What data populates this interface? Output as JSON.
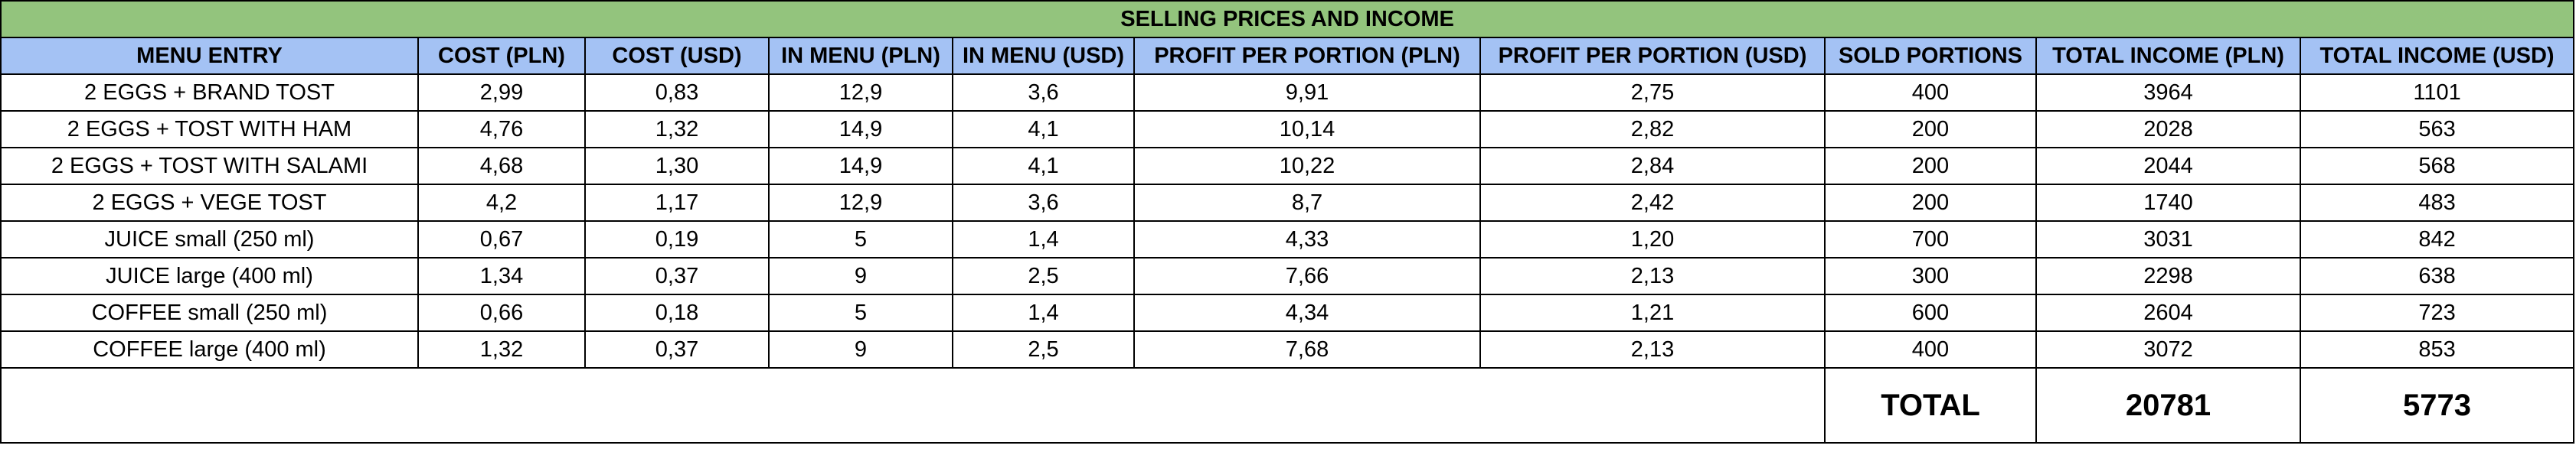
{
  "colors": {
    "title_bg": "#93c47d",
    "header_bg": "#a4c2f4",
    "border": "#000000",
    "cell_bg": "#ffffff"
  },
  "title": "SELLING PRICES AND INCOME",
  "columns": [
    "MENU ENTRY",
    "COST (PLN)",
    "COST (USD)",
    "IN MENU (PLN)",
    "IN MENU (USD)",
    "PROFIT PER PORTION (PLN)",
    "PROFIT PER PORTION (USD)",
    "SOLD PORTIONS",
    "TOTAL INCOME (PLN)",
    "TOTAL INCOME (USD)"
  ],
  "rows": [
    [
      "2 EGGS + BRAND TOST",
      "2,99",
      "0,83",
      "12,9",
      "3,6",
      "9,91",
      "2,75",
      "400",
      "3964",
      "1101"
    ],
    [
      "2 EGGS + TOST WITH HAM",
      "4,76",
      "1,32",
      "14,9",
      "4,1",
      "10,14",
      "2,82",
      "200",
      "2028",
      "563"
    ],
    [
      "2 EGGS + TOST WITH SALAMI",
      "4,68",
      "1,30",
      "14,9",
      "4,1",
      "10,22",
      "2,84",
      "200",
      "2044",
      "568"
    ],
    [
      "2 EGGS + VEGE TOST",
      "4,2",
      "1,17",
      "12,9",
      "3,6",
      "8,7",
      "2,42",
      "200",
      "1740",
      "483"
    ],
    [
      "JUICE small (250 ml)",
      "0,67",
      "0,19",
      "5",
      "1,4",
      "4,33",
      "1,20",
      "700",
      "3031",
      "842"
    ],
    [
      "JUICE large  (400 ml)",
      "1,34",
      "0,37",
      "9",
      "2,5",
      "7,66",
      "2,13",
      "300",
      "2298",
      "638"
    ],
    [
      "COFFEE small (250 ml)",
      "0,66",
      "0,18",
      "5",
      "1,4",
      "4,34",
      "1,21",
      "600",
      "2604",
      "723"
    ],
    [
      "COFFEE large (400 ml)",
      "1,32",
      "0,37",
      "9",
      "2,5",
      "7,68",
      "2,13",
      "400",
      "3072",
      "853"
    ]
  ],
  "totals": {
    "label": "TOTAL",
    "income_pln": "20781",
    "income_usd": "5773"
  }
}
